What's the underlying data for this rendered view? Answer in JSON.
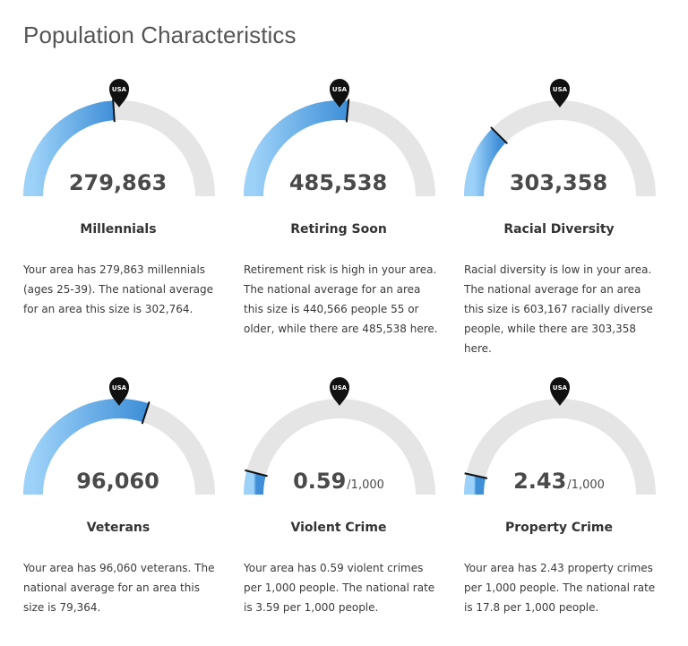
{
  "page": {
    "title": "Population Characteristics"
  },
  "gauge_colors": {
    "start": "#9dd2f8",
    "end": "#3f8fd8",
    "track": "#e5e5e5",
    "marker": "#111111"
  },
  "cards": [
    {
      "id": "millennials",
      "label": "Millennials",
      "value": "279,863",
      "unit": "",
      "marker_text": "USA",
      "fill_fraction": 0.48,
      "national_fraction": 0.5,
      "description": "Your area has 279,863 millennials (ages 25-39). The national average for an area this size is 302,764."
    },
    {
      "id": "retiring",
      "label": "Retiring Soon",
      "value": "485,538",
      "unit": "",
      "marker_text": "USA",
      "fill_fraction": 0.53,
      "national_fraction": 0.5,
      "description": "Retirement risk is high in your area. The national average for an area this size is 440,566 people 55 or older, while there are 485,538 here."
    },
    {
      "id": "diversity",
      "label": "Racial Diversity",
      "value": "303,358",
      "unit": "",
      "marker_text": "USA",
      "fill_fraction": 0.25,
      "national_fraction": 0.5,
      "description": "Racial diversity is low in your area. The national average for an area this size is 603,167 racially diverse people, while there are 303,358 here."
    },
    {
      "id": "veterans",
      "label": "Veterans",
      "value": "96,060",
      "unit": "",
      "marker_text": "USA",
      "fill_fraction": 0.6,
      "national_fraction": 0.5,
      "description": "Your area has 96,060 veterans. The national average for an area this size is 79,364."
    },
    {
      "id": "violent",
      "label": "Violent Crime",
      "value": "0.59",
      "unit": "/1,000",
      "marker_text": "USA",
      "fill_fraction": 0.08,
      "national_fraction": 0.5,
      "description": "Your area has 0.59 violent crimes per 1,000 people. The national rate is 3.59 per 1,000 people."
    },
    {
      "id": "property",
      "label": "Property Crime",
      "value": "2.43",
      "unit": "/1,000",
      "marker_text": "USA",
      "fill_fraction": 0.07,
      "national_fraction": 0.5,
      "description": "Your area has 2.43 property crimes per 1,000 people. The national rate is 17.8 per 1,000 people."
    }
  ]
}
